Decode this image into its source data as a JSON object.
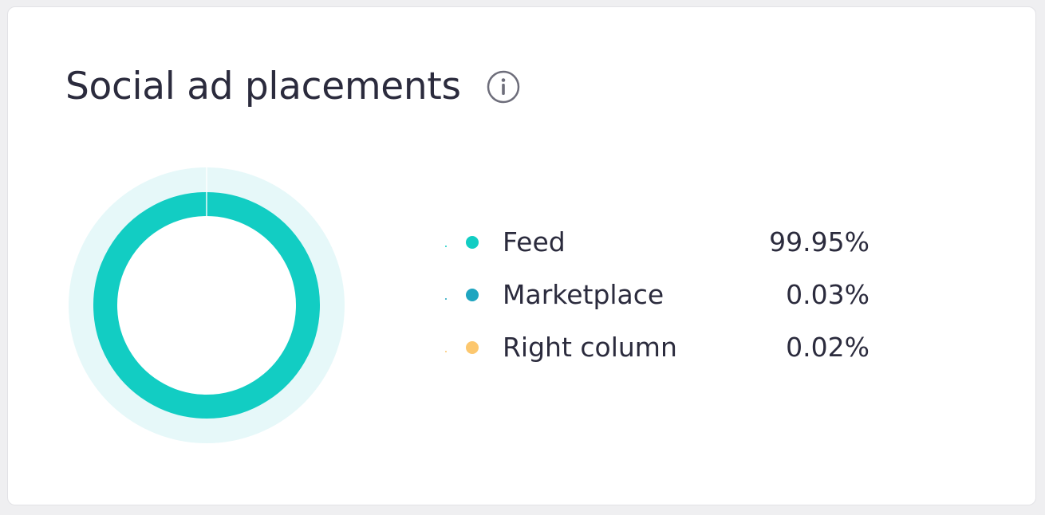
{
  "card": {
    "title": "Social ad placements",
    "info_icon": "info-icon"
  },
  "chart_data": {
    "type": "pie",
    "style": "donut",
    "categories": [
      "Feed",
      "Marketplace",
      "Right column"
    ],
    "values": [
      99.95,
      0.03,
      0.02
    ],
    "value_labels": [
      "99.95%",
      "0.03%",
      "0.02%"
    ],
    "colors": [
      "#12cdc3",
      "#1fa5c0",
      "#fcc76e"
    ],
    "track_color": "#e6f8f9",
    "legend_placement": "right"
  }
}
